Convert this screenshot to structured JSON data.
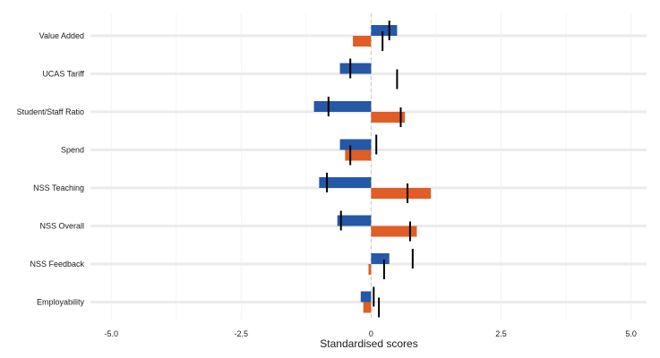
{
  "chart_data": {
    "type": "bar",
    "title": "",
    "xlabel": "Standardised scores",
    "ylabel": "",
    "xlim": [
      -5.4,
      5.3
    ],
    "xticks": [
      -5.0,
      -2.5,
      0,
      2.5,
      5.0
    ],
    "xtick_labels": [
      "-5.0",
      "-2.5",
      "0",
      "2.5",
      "5.0"
    ],
    "grid": true,
    "legend": "none",
    "reference_line": 0,
    "categories": [
      "Value Added",
      "UCAS Tariff",
      "Student/Staff Ratio",
      "Spend",
      "NSS Teaching",
      "NSS Overall",
      "NSS Feedback",
      "Employability"
    ],
    "series": [
      {
        "color": "#2558a6",
        "values": [
          0.5,
          -0.6,
          -1.1,
          -0.6,
          -1.0,
          -0.65,
          0.35,
          -0.2
        ],
        "reference": [
          0.35,
          -0.4,
          -0.82,
          0.1,
          -0.85,
          -0.58,
          0.8,
          0.05
        ]
      },
      {
        "color": "#e05d26",
        "values": [
          -0.35,
          null,
          0.65,
          -0.5,
          1.15,
          0.88,
          -0.05,
          -0.15
        ],
        "reference": [
          0.22,
          0.5,
          0.57,
          -0.4,
          0.7,
          0.75,
          0.25,
          0.15
        ]
      }
    ],
    "colors": {
      "gridline": "#ebebeb",
      "zero_line": "#c8c8c8",
      "marker": "#000000"
    }
  }
}
